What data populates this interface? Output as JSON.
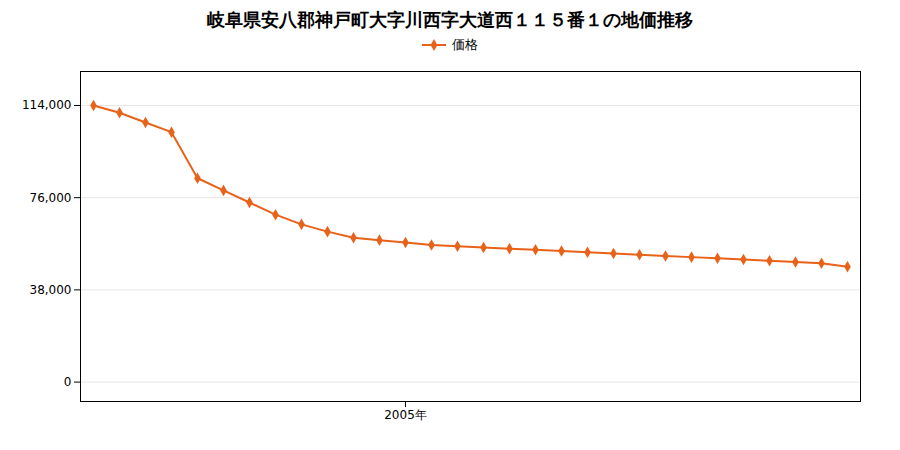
{
  "chart_data": {
    "type": "line",
    "title": "岐阜県安八郡神戸町大字川西字大道西１１５番１の地価推移",
    "x": [
      1993,
      1994,
      1995,
      1996,
      1997,
      1998,
      1999,
      2000,
      2001,
      2002,
      2003,
      2004,
      2005,
      2006,
      2007,
      2008,
      2009,
      2010,
      2011,
      2012,
      2013,
      2014,
      2015,
      2016,
      2017,
      2018,
      2019,
      2020,
      2021,
      2022
    ],
    "series": [
      {
        "name": "価格",
        "color": "#E8621A",
        "marker": "diamond",
        "line_style": "solid",
        "values": [
          114000,
          111000,
          107000,
          103000,
          84000,
          79000,
          74000,
          69000,
          65000,
          62000,
          59500,
          58500,
          57500,
          56500,
          56000,
          55500,
          55000,
          54500,
          54000,
          53500,
          53000,
          52500,
          52000,
          51500,
          51000,
          50500,
          50000,
          49500,
          49000,
          47500
        ]
      }
    ],
    "xlim": [
      1992.5,
      2022.5
    ],
    "xticks": [
      {
        "value": 2005,
        "label": "2005年"
      }
    ],
    "ylim": [
      -8000,
      128000
    ],
    "yticks": [
      0,
      {
        "value": 38000,
        "label": "38,000"
      },
      {
        "value": 76000,
        "label": "76,000"
      },
      {
        "value": 114000,
        "label": "114,000"
      }
    ],
    "grid": "y",
    "legend": "top"
  }
}
